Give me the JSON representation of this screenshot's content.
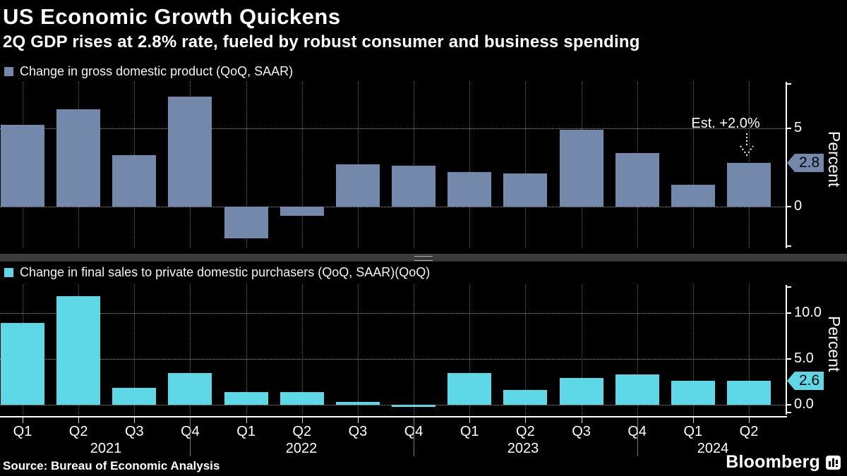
{
  "header": {
    "title": "US Economic Growth Quickens",
    "subtitle": "2Q GDP rises at 2.8% rate, fueled by robust consumer and business spending"
  },
  "colors": {
    "background": "#000000",
    "gdp_bar": "#7289ac",
    "final_sales_bar": "#5ed8e7",
    "text": "#ffffff",
    "gridline": "#6a6a6a",
    "labeled_gridline": "#9b9b9b",
    "splitter": "#3b3b3b",
    "tag_text": "#000000"
  },
  "x_axis": {
    "quarter_labels": [
      "Q1",
      "Q2",
      "Q3",
      "Q4",
      "Q1",
      "Q2",
      "Q3",
      "Q4",
      "Q1",
      "Q2",
      "Q3",
      "Q4",
      "Q1",
      "Q2"
    ],
    "year_labels": [
      "2021",
      "2022",
      "2023",
      "2024"
    ]
  },
  "chart_data": [
    {
      "type": "bar",
      "series_name": "Change in gross domestic product (QoQ, SAAR)",
      "categories": [
        "Q1 2021",
        "Q2 2021",
        "Q3 2021",
        "Q4 2021",
        "Q1 2022",
        "Q2 2022",
        "Q3 2022",
        "Q4 2022",
        "Q1 2023",
        "Q2 2023",
        "Q3 2023",
        "Q4 2023",
        "Q1 2024",
        "Q2 2024"
      ],
      "values": [
        5.2,
        6.2,
        3.3,
        7.0,
        -2.0,
        -0.6,
        2.7,
        2.6,
        2.2,
        2.1,
        4.9,
        3.4,
        1.4,
        2.8
      ],
      "ylabel": "Percent",
      "ylim": [
        -2.65,
        7.95
      ],
      "yticks": [
        {
          "value": 5,
          "label": "5"
        },
        {
          "value": 0,
          "label": "0"
        }
      ],
      "grid": true,
      "legend_position": "top-left",
      "bar_color": "#7289ac",
      "last_value_tag": "2.8",
      "annotation": {
        "text": "Est. +2.0%",
        "target_category": "Q2 2024"
      }
    },
    {
      "type": "bar",
      "series_name": "Change in final sales to private domestic purchasers (QoQ, SAAR)(QoQ)",
      "categories": [
        "Q1 2021",
        "Q2 2021",
        "Q3 2021",
        "Q4 2021",
        "Q1 2022",
        "Q2 2022",
        "Q3 2022",
        "Q4 2022",
        "Q1 2023",
        "Q2 2023",
        "Q3 2023",
        "Q4 2023",
        "Q1 2024",
        "Q2 2024"
      ],
      "values": [
        8.9,
        11.8,
        1.9,
        3.5,
        1.4,
        1.4,
        0.3,
        -0.2,
        3.5,
        1.6,
        2.9,
        3.3,
        2.6,
        2.6
      ],
      "ylabel": "Percent",
      "ylim": [
        -1.05,
        13.05
      ],
      "yticks": [
        {
          "value": 10,
          "label": "10.0"
        },
        {
          "value": 5,
          "label": "5.0"
        },
        {
          "value": 0,
          "label": "0.0"
        }
      ],
      "grid": true,
      "legend_position": "top-left",
      "bar_color": "#5ed8e7",
      "last_value_tag": "2.6"
    }
  ],
  "footer": {
    "source": "Source: Bureau of Economic Analysis",
    "brand": "Bloomberg"
  }
}
